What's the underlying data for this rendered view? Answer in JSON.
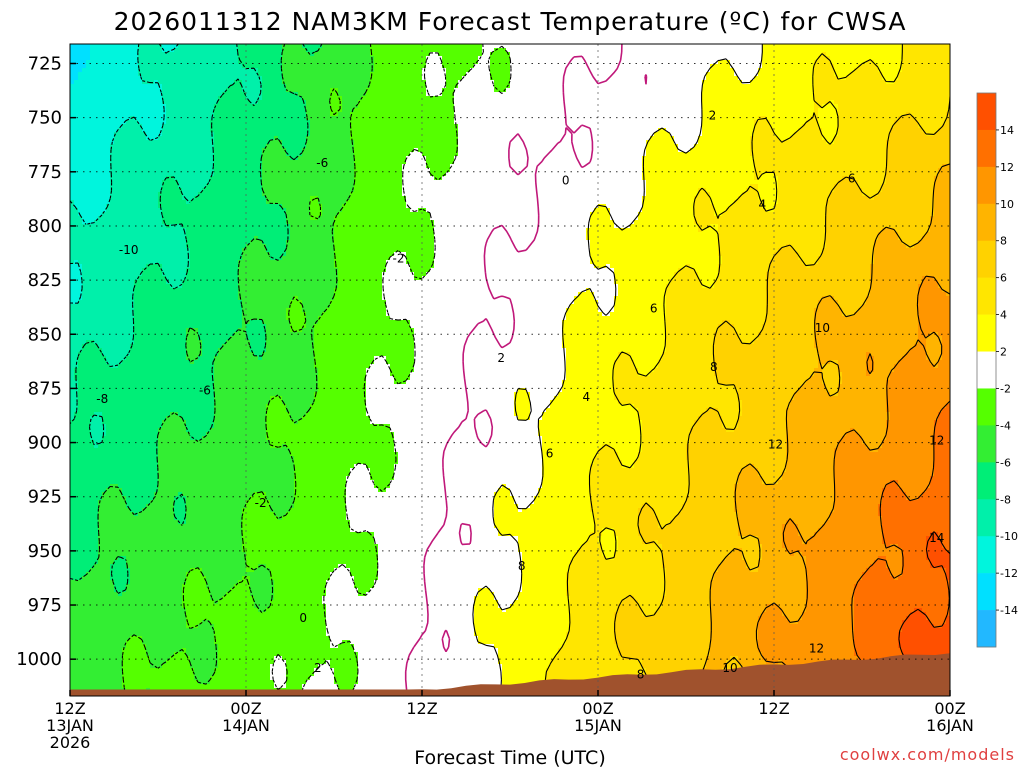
{
  "page": {
    "title": "2026011312 NAM3KM Forecast Temperature (ºC) for CWSA",
    "credit": "coolwx.com/models"
  },
  "colors": {
    "ground": "#a0522d",
    "zero_line": "#c0187a",
    "contour": "#000000"
  },
  "chart_data": {
    "type": "heatmap",
    "title": "2026011312 NAM3KM Forecast Temperature (ºC) for CWSA",
    "xlabel": "Forecast Time (UTC)",
    "ylabel": "",
    "x_range_hours": [
      0,
      60
    ],
    "y_range_hpa": [
      1017,
      716
    ],
    "y_axis_inverted": true,
    "grid": true,
    "y_ticks": [
      725,
      750,
      775,
      800,
      825,
      850,
      875,
      900,
      925,
      950,
      975,
      1000
    ],
    "x_ticks": [
      {
        "hour": 0,
        "labels": [
          "12Z",
          "13JAN",
          "2026"
        ]
      },
      {
        "hour": 12,
        "labels": [
          "00Z",
          "14JAN"
        ]
      },
      {
        "hour": 24,
        "labels": [
          "12Z"
        ]
      },
      {
        "hour": 36,
        "labels": [
          "00Z",
          "15JAN"
        ]
      },
      {
        "hour": 48,
        "labels": [
          "12Z"
        ]
      },
      {
        "hour": 60,
        "labels": [
          "00Z",
          "16JAN"
        ]
      }
    ],
    "colorbar": {
      "bins": [
        {
          "low": 14,
          "high": 16,
          "color": "#ff5000"
        },
        {
          "low": 12,
          "high": 14,
          "color": "#ff7000"
        },
        {
          "low": 10,
          "high": 12,
          "color": "#ff9600"
        },
        {
          "low": 8,
          "high": 10,
          "color": "#ffb400"
        },
        {
          "low": 6,
          "high": 8,
          "color": "#ffd200"
        },
        {
          "low": 4,
          "high": 6,
          "color": "#ffe600"
        },
        {
          "low": 2,
          "high": 4,
          "color": "#ffff00"
        },
        {
          "low": -2,
          "high": 2,
          "color": "#ffffff"
        },
        {
          "low": -4,
          "high": -2,
          "color": "#55ff00"
        },
        {
          "low": -6,
          "high": -4,
          "color": "#33ee33"
        },
        {
          "low": -8,
          "high": -6,
          "color": "#00ee77"
        },
        {
          "low": -10,
          "high": -8,
          "color": "#00f0aa"
        },
        {
          "low": -12,
          "high": -10,
          "color": "#00f5dd"
        },
        {
          "low": -14,
          "high": -12,
          "color": "#00e0ff"
        },
        {
          "low": -16,
          "high": -14,
          "color": "#22b8ff"
        }
      ],
      "tick_labels": [
        "14",
        "12",
        "10",
        "8",
        "6",
        "4",
        "2",
        "-2",
        "-4",
        "-6",
        "-8",
        "-10",
        "-12",
        "-14"
      ]
    },
    "contour_labels": [
      {
        "text": "-10",
        "hour": 4.0,
        "hpa": 811
      },
      {
        "text": "-8",
        "hour": 2.2,
        "hpa": 880
      },
      {
        "text": "-6",
        "hour": 9.2,
        "hpa": 876
      },
      {
        "text": "-6",
        "hour": 17.2,
        "hpa": 771
      },
      {
        "text": "-2",
        "hour": 22.4,
        "hpa": 815
      },
      {
        "text": "-2",
        "hour": 13.0,
        "hpa": 928
      },
      {
        "text": "0",
        "hour": 15.9,
        "hpa": 981
      },
      {
        "text": "0",
        "hour": 33.8,
        "hpa": 779
      },
      {
        "text": "2",
        "hour": 16.9,
        "hpa": 1004
      },
      {
        "text": "2",
        "hour": 29.4,
        "hpa": 861
      },
      {
        "text": "2",
        "hour": 43.8,
        "hpa": 749
      },
      {
        "text": "4",
        "hour": 35.2,
        "hpa": 879
      },
      {
        "text": "4",
        "hour": 47.2,
        "hpa": 790
      },
      {
        "text": "6",
        "hour": 32.7,
        "hpa": 905
      },
      {
        "text": "6",
        "hour": 39.8,
        "hpa": 838
      },
      {
        "text": "6",
        "hour": 53.3,
        "hpa": 778
      },
      {
        "text": "8",
        "hour": 30.8,
        "hpa": 957
      },
      {
        "text": "8",
        "hour": 38.9,
        "hpa": 1007
      },
      {
        "text": "8",
        "hour": 43.9,
        "hpa": 865
      },
      {
        "text": "10",
        "hour": 45.0,
        "hpa": 1004
      },
      {
        "text": "10",
        "hour": 51.3,
        "hpa": 847
      },
      {
        "text": "12",
        "hour": 48.1,
        "hpa": 901
      },
      {
        "text": "12",
        "hour": 50.9,
        "hpa": 995
      },
      {
        "text": "12",
        "hour": 59.1,
        "hpa": 899
      },
      {
        "text": "14",
        "hour": 59.1,
        "hpa": 944
      }
    ]
  }
}
